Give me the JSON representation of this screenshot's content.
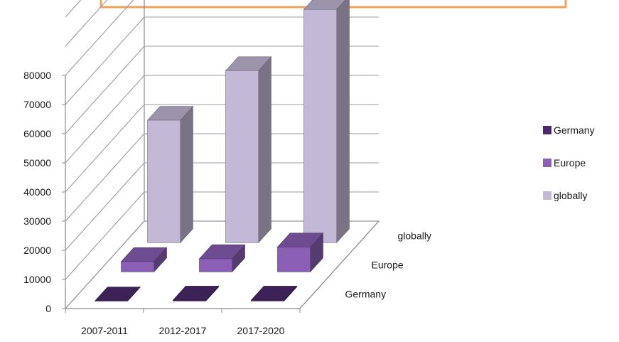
{
  "chart_data": {
    "type": "bar",
    "subtype": "3d-column",
    "categories": [
      "2007-2011",
      "2012-2017",
      "2017-2020"
    ],
    "series": [
      {
        "name": "Germany",
        "values": [
          0,
          300,
          300
        ],
        "color": "#4b2a6b"
      },
      {
        "name": "Europe",
        "values": [
          3500,
          4500,
          8500
        ],
        "color": "#8a5fb5"
      },
      {
        "name": "globally",
        "values": [
          42000,
          59000,
          80000
        ],
        "color": "#c3b9d6"
      }
    ],
    "y_ticks": [
      "0",
      "10000",
      "20000",
      "30000",
      "40000",
      "50000",
      "60000",
      "70000",
      "80000"
    ],
    "ylim": [
      0,
      80000
    ],
    "depth_labels": [
      "Germany",
      "Europe",
      "globally"
    ],
    "legend": [
      "Germany",
      "Europe",
      "globally"
    ],
    "legend_position": "right",
    "grid": true,
    "title_box_color": "#f0a35e"
  }
}
